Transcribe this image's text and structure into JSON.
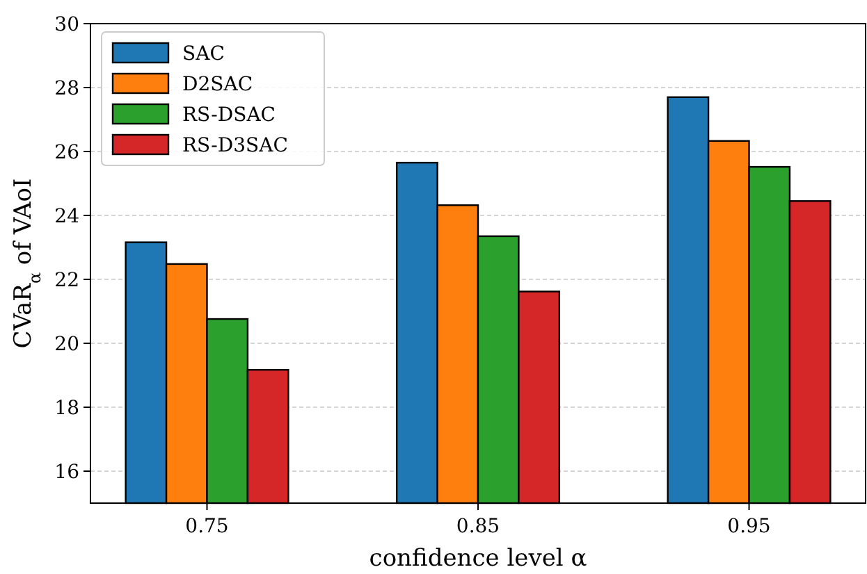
{
  "chart_data": {
    "type": "bar",
    "xlabel": "confidence level α",
    "ylabel": "CVaR$_{α}$ of VAoI",
    "categories": [
      "0.75",
      "0.85",
      "0.95"
    ],
    "series": [
      {
        "name": "SAC",
        "color": "#1f77b4",
        "values": [
          23.16,
          25.65,
          27.7
        ]
      },
      {
        "name": "D2SAC",
        "color": "#ff7f0e",
        "values": [
          22.48,
          24.32,
          26.33
        ]
      },
      {
        "name": "RS-DSAC",
        "color": "#2ca02c",
        "values": [
          20.76,
          23.35,
          25.52
        ]
      },
      {
        "name": "RS-D3SAC",
        "color": "#d62728",
        "values": [
          19.17,
          21.62,
          24.45
        ]
      }
    ],
    "ylim": [
      15,
      30
    ],
    "yticks": [
      16,
      18,
      20,
      22,
      24,
      26,
      28,
      30
    ],
    "grid": "y",
    "legend": "top left"
  }
}
